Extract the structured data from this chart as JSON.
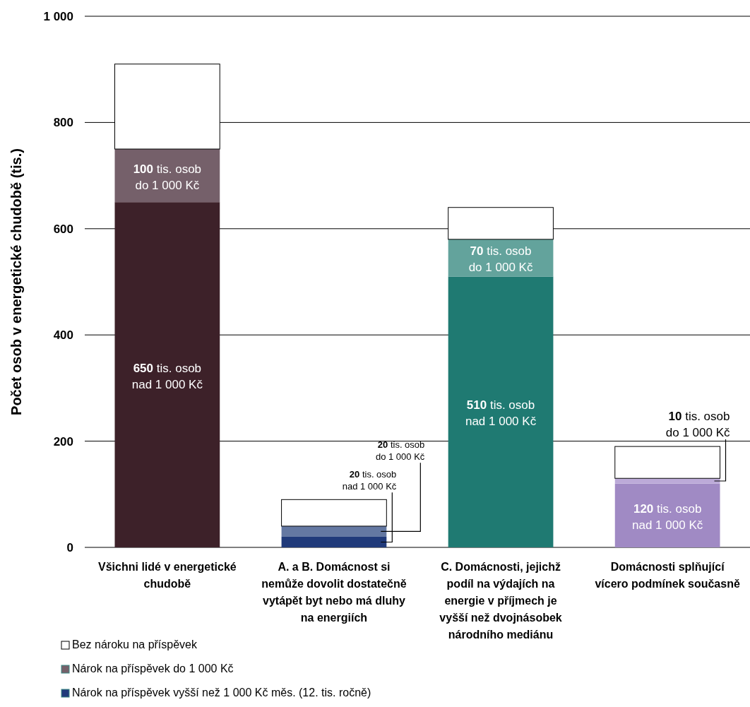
{
  "chart_data": {
    "type": "bar",
    "stacked": true,
    "ylabel": "Počet osob v energetické chudobě (tis.)",
    "categories": [
      "Všichni lidé v energetické chudobě",
      "A. a B. Domácnost si nemůže dovolit dostatečně vytápět byt nebo má dluhy na energiích",
      "C. Domácnosti, jejichž podíl na výdajích na energie v příjmech je vyšší než dvojnásobek národního mediánu",
      "Domácnosti splňující vícero podmínek současně"
    ],
    "series": [
      {
        "name": "Nárok na příspěvek vyšší než 1 000 Kč měs. (12. tis. ročně)",
        "color": "#203a7a",
        "colors": [
          "#3d2129",
          "#203a7a",
          "#1f7a72",
          "#a08ac4"
        ],
        "values": [
          650,
          20,
          510,
          120
        ],
        "value_labels": [
          "650 tis. osob\nnad 1 000 Kč",
          "20 tis. osob\nnad 1 000 Kč",
          "510 tis. osob\nnad 1 000 Kč",
          "120 tis. osob\nnad 1 000 Kč"
        ]
      },
      {
        "name": "Nárok na příspěvek do 1 000 Kč",
        "color": "#75606a",
        "colors": [
          "#75606a",
          "#6478a2",
          "#63a39c",
          "#bcaad8"
        ],
        "values": [
          100,
          20,
          70,
          10
        ],
        "value_labels": [
          "100 tis. osob\ndo 1 000 Kč",
          "20 tis. osob\ndo 1 000 Kč",
          "70 tis. osob\ndo 1 000 Kč",
          "10 tis. osob\ndo 1 000 Kč"
        ]
      },
      {
        "name": "Bez nároku na příspěvek",
        "color": "#ffffff",
        "colors": [
          "#ffffff",
          "#ffffff",
          "#ffffff",
          "#ffffff"
        ],
        "values": [
          160,
          50,
          60,
          60
        ]
      }
    ],
    "ylim": [
      0,
      1000
    ],
    "yticks": [
      0,
      200,
      400,
      600,
      800,
      {
        "value": 1000,
        "label": "1 000"
      }
    ],
    "grid": "y",
    "legend": "bottom"
  }
}
